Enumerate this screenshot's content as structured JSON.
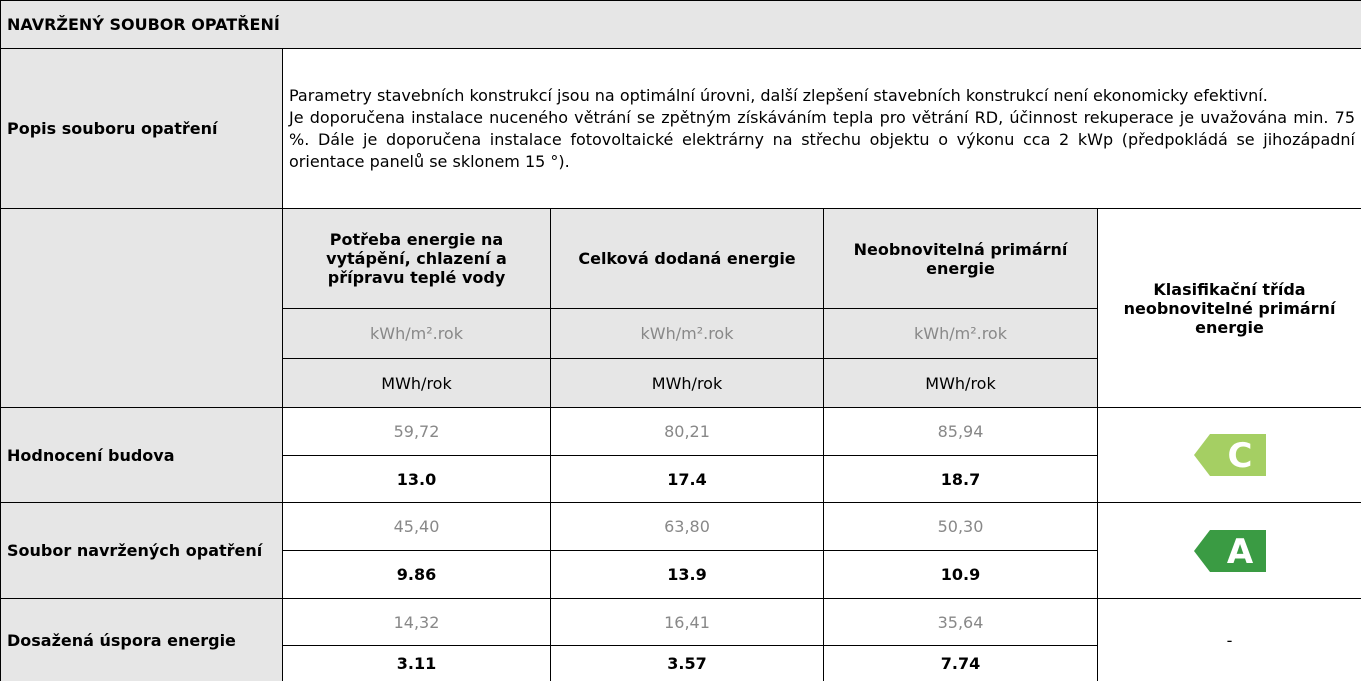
{
  "header": {
    "title": "NAVRŽENÝ SOUBOR OPATŘENÍ"
  },
  "description": {
    "label": "Popis souboru opatření",
    "paragraphs": [
      "Parametry stavebních konstrukcí jsou na optimální úrovni, další zlepšení stavebních konstrukcí není ekonomicky efektivní.",
      "Je doporučena instalace nuceného větrání se zpětným získáváním tepla pro větrání RD, účinnost rekuperace je uvažována min. 75 %. Dále je doporučena instalace fotovoltaické elektrárny na střechu objektu o výkonu cca 2 kWp (předpokládá se jihozápadní orientace panelů se sklonem 15 °)."
    ]
  },
  "table": {
    "columns": [
      "Potřeba energie na vytápění, chlazení a přípravu teplé vody",
      "Celková dodaná energie",
      "Neobnovitelná primární energie"
    ],
    "class_header": "Klasifikační třída neobnovitelné primární energie",
    "units_specific": [
      "kWh/m².rok",
      "kWh/m².rok",
      "kWh/m².rok"
    ],
    "units_total": [
      "MWh/rok",
      "MWh/rok",
      "MWh/rok"
    ],
    "rows": [
      {
        "label": "Hodnocení budova",
        "specific": [
          "59,72",
          "80,21",
          "85,94"
        ],
        "total": [
          "13.0",
          "17.4",
          "18.7"
        ],
        "class": "C"
      },
      {
        "label": "Soubor navržených opatření",
        "specific": [
          "45,40",
          "63,80",
          "50,30"
        ],
        "total": [
          "9.86",
          "13.9",
          "10.9"
        ],
        "class": "A"
      },
      {
        "label": "Dosažená úspora energie",
        "specific": [
          "14,32",
          "16,41",
          "35,64"
        ],
        "total": [
          "3.11",
          "3.57",
          "7.74"
        ],
        "class": "-"
      }
    ]
  }
}
